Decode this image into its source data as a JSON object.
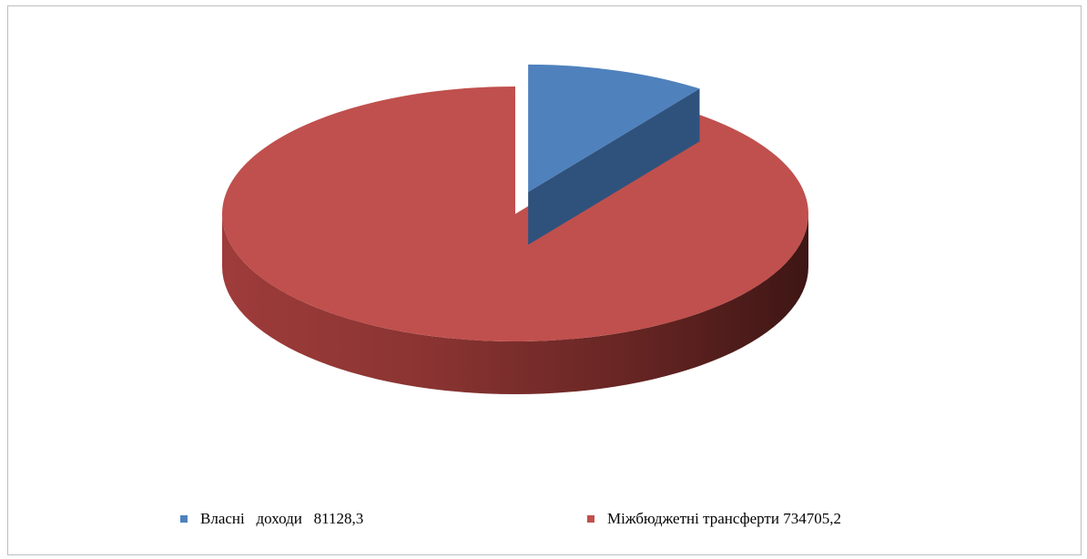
{
  "chart_data": {
    "type": "pie",
    "title": "",
    "style": "3d-exploded",
    "slices": [
      {
        "label": "Власні доходи",
        "value": 81128.3,
        "color": "#4f81bd"
      },
      {
        "label": "Міжбюджетні трансферти",
        "value": 734705.2,
        "color": "#c0504d"
      }
    ],
    "legend": {
      "position": "bottom",
      "items": [
        {
          "text": "Власні   доходи   81128,3",
          "color": "#4f81bd"
        },
        {
          "text": "Міжбюджетні трансферти 734705,2",
          "color": "#c0504d"
        }
      ]
    }
  }
}
